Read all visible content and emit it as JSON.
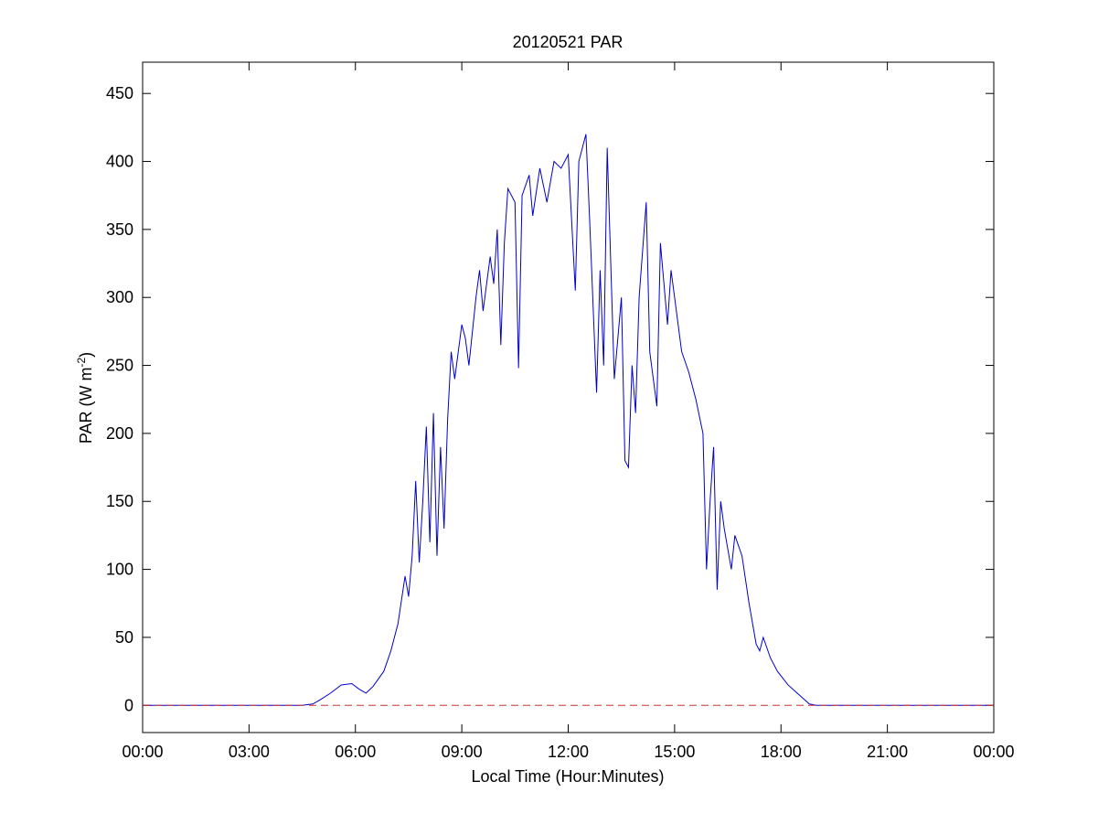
{
  "chart_data": {
    "type": "line",
    "title": "20120521 PAR",
    "xlabel": "Local Time (Hour:Minutes)",
    "ylabel": {
      "text": "PAR (W m",
      "superscript": "-2",
      "suffix": ")"
    },
    "x": [
      0,
      4.5,
      4.8,
      5.0,
      5.3,
      5.6,
      5.9,
      6.1,
      6.3,
      6.5,
      6.8,
      7.0,
      7.2,
      7.4,
      7.5,
      7.6,
      7.7,
      7.8,
      7.9,
      8.0,
      8.1,
      8.2,
      8.3,
      8.4,
      8.5,
      8.6,
      8.7,
      8.8,
      9.0,
      9.1,
      9.2,
      9.4,
      9.5,
      9.6,
      9.8,
      9.9,
      10.0,
      10.1,
      10.2,
      10.3,
      10.5,
      10.6,
      10.7,
      10.9,
      11.0,
      11.2,
      11.4,
      11.6,
      11.8,
      12.0,
      12.2,
      12.3,
      12.5,
      12.6,
      12.8,
      12.9,
      13.0,
      13.1,
      13.3,
      13.5,
      13.6,
      13.7,
      13.8,
      13.9,
      14.0,
      14.2,
      14.3,
      14.5,
      14.6,
      14.8,
      14.9,
      15.0,
      15.2,
      15.4,
      15.6,
      15.8,
      15.9,
      16.0,
      16.1,
      16.2,
      16.3,
      16.4,
      16.6,
      16.7,
      16.9,
      17.1,
      17.3,
      17.4,
      17.5,
      17.7,
      17.9,
      18.2,
      18.5,
      18.8,
      19.0,
      24
    ],
    "series": [
      {
        "color": "#0000cc",
        "values": [
          0,
          0,
          1,
          4,
          9,
          15,
          16,
          12,
          9,
          14,
          25,
          40,
          60,
          95,
          80,
          110,
          165,
          105,
          150,
          205,
          120,
          215,
          110,
          190,
          130,
          210,
          260,
          240,
          280,
          270,
          250,
          300,
          320,
          290,
          330,
          310,
          350,
          265,
          340,
          380,
          370,
          248,
          375,
          390,
          360,
          395,
          370,
          400,
          395,
          405,
          305,
          400,
          420,
          360,
          230,
          320,
          250,
          410,
          240,
          300,
          180,
          175,
          250,
          215,
          300,
          370,
          260,
          220,
          340,
          280,
          320,
          300,
          260,
          245,
          225,
          200,
          100,
          150,
          190,
          85,
          150,
          130,
          100,
          125,
          110,
          75,
          45,
          40,
          50,
          35,
          25,
          15,
          8,
          1,
          0,
          0
        ]
      }
    ],
    "reference_line": {
      "value": 0,
      "color": "#cc3333"
    },
    "xlim": [
      0,
      24
    ],
    "xticks": [
      {
        "value": 0,
        "label": "00:00"
      },
      {
        "value": 3,
        "label": "03:00"
      },
      {
        "value": 6,
        "label": "06:00"
      },
      {
        "value": 9,
        "label": "09:00"
      },
      {
        "value": 12,
        "label": "12:00"
      },
      {
        "value": 15,
        "label": "15:00"
      },
      {
        "value": 18,
        "label": "18:00"
      },
      {
        "value": 21,
        "label": "21:00"
      },
      {
        "value": 24,
        "label": "00:00"
      }
    ],
    "ylim": [
      -20,
      473
    ],
    "yticks": [
      0,
      50,
      100,
      150,
      200,
      250,
      300,
      350,
      400,
      450
    ],
    "grid": false
  }
}
